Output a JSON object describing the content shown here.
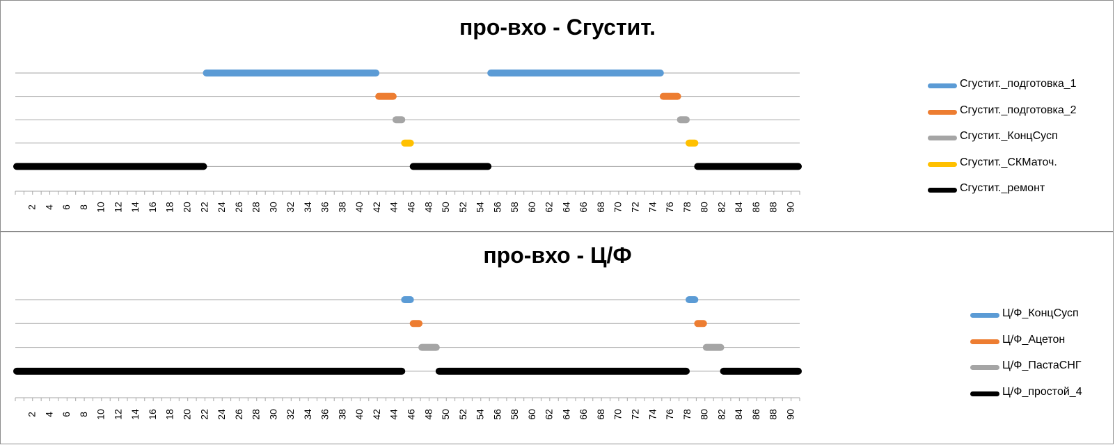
{
  "chart_data": [
    {
      "type": "gantt",
      "title": "про-вхо - Сгустит.",
      "xlim": [
        0,
        91
      ],
      "tick_labels": [
        "2",
        "4",
        "6",
        "8",
        "10",
        "12",
        "14",
        "16",
        "18",
        "20",
        "22",
        "24",
        "26",
        "28",
        "30",
        "32",
        "34",
        "36",
        "38",
        "40",
        "42",
        "44",
        "46",
        "48",
        "50",
        "52",
        "54",
        "56",
        "58",
        "60",
        "62",
        "64",
        "66",
        "68",
        "70",
        "72",
        "74",
        "76",
        "78",
        "80",
        "82",
        "84",
        "86",
        "88",
        "90"
      ],
      "legend_position": "right",
      "series": [
        {
          "name": "Сгустит._подготовка_1",
          "color": "#5b9bd5",
          "intervals": [
            [
              22,
              42
            ],
            [
              55,
              75
            ]
          ]
        },
        {
          "name": "Сгустит._подготовка_2",
          "color": "#ed7d31",
          "intervals": [
            [
              42,
              44
            ],
            [
              75,
              77
            ]
          ]
        },
        {
          "name": "Сгустит._КонцСусп",
          "color": "#a5a5a5",
          "intervals": [
            [
              44,
              45
            ],
            [
              77,
              78
            ]
          ]
        },
        {
          "name": "Сгустит._СКМаточ.",
          "color": "#ffc000",
          "intervals": [
            [
              45,
              46
            ],
            [
              78,
              79
            ]
          ]
        },
        {
          "name": "Сгустит._ремонт",
          "color": "#000000",
          "intervals": [
            [
              0,
              22
            ],
            [
              46,
              55
            ],
            [
              79,
              91
            ]
          ]
        }
      ]
    },
    {
      "type": "gantt",
      "title": "про-вхо - Ц/Ф",
      "xlim": [
        0,
        91
      ],
      "tick_labels": [
        "2",
        "4",
        "6",
        "8",
        "10",
        "12",
        "14",
        "16",
        "18",
        "20",
        "22",
        "24",
        "26",
        "28",
        "30",
        "32",
        "34",
        "36",
        "38",
        "40",
        "42",
        "44",
        "46",
        "48",
        "50",
        "52",
        "54",
        "56",
        "58",
        "60",
        "62",
        "64",
        "66",
        "68",
        "70",
        "72",
        "74",
        "76",
        "78",
        "80",
        "82",
        "84",
        "86",
        "88",
        "90"
      ],
      "legend_position": "right",
      "series": [
        {
          "name": "Ц/Ф_КонцСусп",
          "color": "#5b9bd5",
          "intervals": [
            [
              45,
              46
            ],
            [
              78,
              79
            ]
          ]
        },
        {
          "name": "Ц/Ф_Ацетон",
          "color": "#ed7d31",
          "intervals": [
            [
              46,
              47
            ],
            [
              79,
              80
            ]
          ]
        },
        {
          "name": "Ц/Ф_ПастаСНГ",
          "color": "#a5a5a5",
          "intervals": [
            [
              47,
              49
            ],
            [
              80,
              82
            ]
          ]
        },
        {
          "name": "Ц/Ф_простой_4",
          "color": "#000000",
          "intervals": [
            [
              0,
              45
            ],
            [
              49,
              78
            ],
            [
              82,
              91
            ]
          ]
        }
      ]
    }
  ]
}
